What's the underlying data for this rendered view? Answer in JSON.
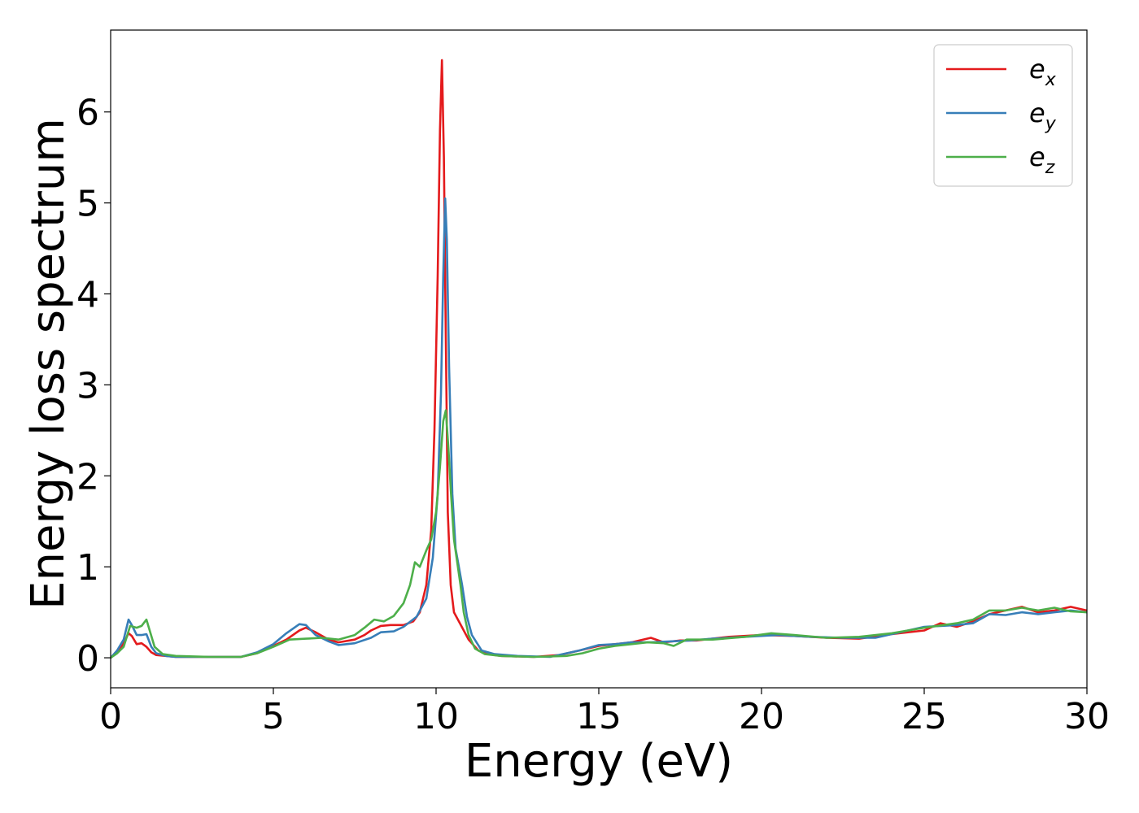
{
  "chart_data": {
    "type": "line",
    "title": "",
    "xlabel": "Energy (eV)",
    "ylabel": "Energy loss spectrum",
    "xlim": [
      0,
      30
    ],
    "ylim": [
      -0.33,
      6.9
    ],
    "xticks": [
      0,
      5,
      10,
      15,
      20,
      25,
      30
    ],
    "yticks": [
      0,
      1,
      2,
      3,
      4,
      5,
      6
    ],
    "grid": false,
    "legend_position": "top-right",
    "series": [
      {
        "name": "e_x",
        "label_base": "e",
        "label_sub": "x",
        "color": "#e41a1c",
        "x": [
          0,
          0.2,
          0.4,
          0.55,
          0.65,
          0.8,
          0.95,
          1.1,
          1.25,
          1.4,
          1.7,
          2.0,
          3.0,
          4.0,
          4.5,
          5.0,
          5.4,
          5.8,
          6.0,
          6.3,
          6.7,
          7.0,
          7.5,
          7.8,
          8.0,
          8.3,
          8.6,
          9.0,
          9.3,
          9.5,
          9.7,
          9.85,
          9.95,
          10.05,
          10.12,
          10.18,
          10.24,
          10.3,
          10.36,
          10.45,
          10.55,
          10.7,
          10.85,
          11.0,
          11.3,
          11.6,
          12.0,
          13.0,
          13.8,
          14.4,
          15.0,
          15.5,
          16.0,
          16.6,
          17.0,
          17.5,
          18.0,
          19.0,
          20.0,
          21.0,
          22.0,
          23.0,
          24.0,
          25.0,
          25.5,
          26.0,
          26.5,
          27.0,
          27.5,
          28.0,
          28.5,
          29.0,
          29.5,
          30.0
        ],
        "y": [
          0.0,
          0.06,
          0.16,
          0.27,
          0.24,
          0.15,
          0.16,
          0.12,
          0.06,
          0.03,
          0.02,
          0.01,
          0.01,
          0.01,
          0.05,
          0.13,
          0.2,
          0.3,
          0.33,
          0.28,
          0.2,
          0.17,
          0.2,
          0.25,
          0.3,
          0.35,
          0.36,
          0.36,
          0.4,
          0.5,
          0.8,
          1.4,
          2.5,
          4.2,
          5.8,
          6.57,
          5.5,
          3.5,
          1.6,
          0.8,
          0.5,
          0.4,
          0.3,
          0.2,
          0.08,
          0.04,
          0.02,
          0.01,
          0.03,
          0.08,
          0.13,
          0.15,
          0.17,
          0.22,
          0.17,
          0.19,
          0.19,
          0.23,
          0.25,
          0.24,
          0.22,
          0.21,
          0.26,
          0.3,
          0.38,
          0.34,
          0.4,
          0.48,
          0.52,
          0.56,
          0.5,
          0.52,
          0.56,
          0.52
        ]
      },
      {
        "name": "e_y",
        "label_base": "e",
        "label_sub": "y",
        "color": "#377eb8",
        "x": [
          0,
          0.2,
          0.4,
          0.55,
          0.65,
          0.8,
          0.95,
          1.1,
          1.25,
          1.4,
          1.7,
          2.0,
          3.0,
          4.0,
          4.5,
          5.0,
          5.4,
          5.8,
          6.0,
          6.3,
          6.7,
          7.0,
          7.5,
          8.0,
          8.3,
          8.7,
          9.0,
          9.4,
          9.7,
          9.9,
          10.05,
          10.15,
          10.22,
          10.28,
          10.33,
          10.4,
          10.5,
          10.6,
          10.7,
          10.8,
          10.95,
          11.1,
          11.4,
          11.8,
          12.5,
          13.5,
          14.4,
          15.0,
          15.5,
          16.0,
          16.6,
          17.2,
          17.8,
          18.5,
          19.5,
          20.5,
          21.5,
          22.5,
          23.5,
          24.0,
          24.5,
          25.0,
          25.5,
          26.0,
          26.5,
          27.0,
          27.5,
          28.0,
          28.5,
          29.0,
          29.5,
          30.0
        ],
        "y": [
          0.0,
          0.08,
          0.2,
          0.42,
          0.36,
          0.25,
          0.25,
          0.26,
          0.12,
          0.05,
          0.02,
          0.01,
          0.01,
          0.01,
          0.06,
          0.15,
          0.27,
          0.37,
          0.36,
          0.25,
          0.18,
          0.14,
          0.16,
          0.22,
          0.28,
          0.29,
          0.34,
          0.45,
          0.65,
          1.1,
          1.8,
          2.9,
          4.2,
          5.05,
          4.6,
          3.2,
          1.8,
          1.2,
          1.0,
          0.8,
          0.45,
          0.25,
          0.08,
          0.04,
          0.02,
          0.01,
          0.08,
          0.14,
          0.15,
          0.17,
          0.17,
          0.18,
          0.19,
          0.21,
          0.23,
          0.25,
          0.23,
          0.22,
          0.22,
          0.26,
          0.3,
          0.34,
          0.35,
          0.36,
          0.38,
          0.48,
          0.47,
          0.5,
          0.48,
          0.5,
          0.52,
          0.5
        ]
      },
      {
        "name": "e_z",
        "label_base": "e",
        "label_sub": "z",
        "color": "#4daf4a",
        "x": [
          0,
          0.2,
          0.4,
          0.6,
          0.8,
          0.95,
          1.1,
          1.2,
          1.35,
          1.6,
          2.0,
          3.0,
          4.0,
          4.5,
          5.0,
          5.5,
          6.0,
          6.5,
          7.0,
          7.5,
          7.8,
          8.1,
          8.4,
          8.7,
          9.0,
          9.2,
          9.35,
          9.5,
          9.7,
          9.85,
          10.0,
          10.12,
          10.22,
          10.3,
          10.38,
          10.46,
          10.55,
          10.65,
          10.75,
          10.85,
          11.0,
          11.2,
          11.5,
          12.0,
          13.0,
          14.0,
          14.5,
          15.0,
          15.5,
          16.0,
          16.5,
          17.0,
          17.3,
          17.7,
          18.5,
          19.5,
          20.3,
          21.0,
          22.0,
          23.0,
          24.0,
          25.0,
          26.0,
          26.5,
          27.0,
          27.5,
          28.0,
          28.5,
          29.0,
          29.5,
          30.0
        ],
        "y": [
          0.0,
          0.05,
          0.12,
          0.35,
          0.33,
          0.35,
          0.42,
          0.3,
          0.12,
          0.04,
          0.02,
          0.01,
          0.01,
          0.05,
          0.12,
          0.2,
          0.21,
          0.22,
          0.2,
          0.25,
          0.33,
          0.42,
          0.4,
          0.46,
          0.6,
          0.8,
          1.05,
          1.0,
          1.18,
          1.3,
          1.6,
          2.1,
          2.6,
          2.72,
          2.3,
          1.8,
          1.3,
          1.05,
          0.8,
          0.5,
          0.25,
          0.1,
          0.04,
          0.02,
          0.01,
          0.02,
          0.05,
          0.1,
          0.13,
          0.15,
          0.17,
          0.16,
          0.13,
          0.2,
          0.2,
          0.23,
          0.27,
          0.25,
          0.22,
          0.23,
          0.27,
          0.33,
          0.38,
          0.42,
          0.52,
          0.52,
          0.55,
          0.52,
          0.55,
          0.51,
          0.5
        ]
      }
    ]
  }
}
